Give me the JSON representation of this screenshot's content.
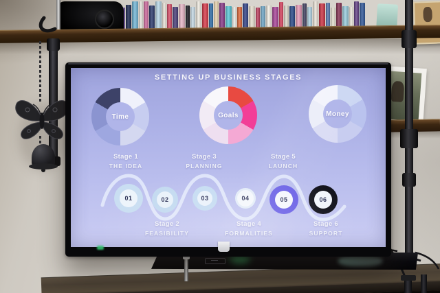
{
  "screen": {
    "title": "SETTING UP BUSINESS STAGES",
    "donuts": [
      {
        "label": "Time",
        "segments": [
          "#eff1fb",
          "#c7cdf0",
          "#d4d8f0",
          "#9ea7e0",
          "#8b94d0",
          "#3d4268"
        ]
      },
      {
        "label": "Goals",
        "segments": [
          "#e84a41",
          "#f23e97",
          "#f4a9d4",
          "#eedff0",
          "#f2ebf5",
          "#f8f7fb"
        ]
      },
      {
        "label": "Money",
        "segments": [
          "#ccd7f3",
          "#bac3ee",
          "#c8cdf0",
          "#dadcf4",
          "#ebedf9",
          "#f3f4fc"
        ]
      }
    ],
    "stages": [
      {
        "stage": "Stage 1",
        "name": "THE IDEA",
        "num": "01",
        "ring_color": "#c9def2",
        "inner_color": "#edf4fb"
      },
      {
        "stage": "Stage 2",
        "name": "FEASIBILITY",
        "num": "02",
        "ring_color": "#c3daf0",
        "inner_color": "#e9f1fa"
      },
      {
        "stage": "Stage 3",
        "name": "PLANNING",
        "num": "03",
        "ring_color": "#c6dcf2",
        "inner_color": "#eaf2fb"
      },
      {
        "stage": "Stage 4",
        "name": "FORMALITIES",
        "num": "04",
        "ring_color": "#e3ecf8",
        "inner_color": "#f4f7fc"
      },
      {
        "stage": "Stage 5",
        "name": "LAUNCH",
        "num": "05",
        "ring_color": "#6b61e6",
        "inner_color": "#f5f7fd"
      },
      {
        "stage": "Stage 6",
        "name": "SUPPORT",
        "num": "06",
        "ring_color": "#14141d",
        "inner_color": "#f2f5fb"
      }
    ],
    "bg_top": "#9fa4dd",
    "bg_bottom": "#cbcdf3",
    "number_color": "#2c3156"
  },
  "chart_data": [
    {
      "type": "pie",
      "title": "Time",
      "values": [
        16.6,
        16.7,
        16.7,
        16.7,
        16.7,
        16.6
      ],
      "colors": [
        "#eff1fb",
        "#c7cdf0",
        "#d4d8f0",
        "#9ea7e0",
        "#8b94d0",
        "#3d4268"
      ],
      "donut": true,
      "center_label": "Time",
      "legend": "none"
    },
    {
      "type": "pie",
      "title": "Goals",
      "values": [
        16.6,
        16.7,
        16.7,
        16.7,
        16.7,
        16.6
      ],
      "colors": [
        "#e84a41",
        "#f23e97",
        "#f4a9d4",
        "#eedff0",
        "#f2ebf5",
        "#f8f7fb"
      ],
      "donut": true,
      "center_label": "Goals",
      "legend": "none"
    },
    {
      "type": "pie",
      "title": "Money",
      "values": [
        16.6,
        16.7,
        16.7,
        16.7,
        16.7,
        16.6
      ],
      "colors": [
        "#ccd7f3",
        "#bac3ee",
        "#c8cdf0",
        "#dadcf4",
        "#ebedf9",
        "#f3f4fc"
      ],
      "donut": true,
      "center_label": "Money",
      "legend": "none"
    }
  ],
  "shelf": {
    "dvd_spines": [
      "#2b2b33",
      "#7a5aa8",
      "#1e2a52",
      "#74b8d8",
      "#e8e6de",
      "#cf6a9e",
      "#2b3b6e",
      "#b8d8e8",
      "#efe9dd",
      "#d94f6a",
      "#4a3f7a",
      "#e8b8c8",
      "#1a1a22",
      "#c8dce8",
      "#f0ece2",
      "#d83a4a",
      "#2e6ea8",
      "#e8d5b0",
      "#8a3a8a",
      "#5ac8d8",
      "#efefe8",
      "#e06a3a",
      "#334488",
      "#e8e0d0",
      "#c04060",
      "#70a8c8",
      "#f2eee4",
      "#aa4499",
      "#d8425f",
      "#ddd8ca",
      "#2a4a8a",
      "#e89ab8",
      "#404060",
      "#b0d4e4",
      "#ece6da",
      "#cc3344",
      "#5878b0",
      "#e8e2d2",
      "#883355",
      "#99ccdd",
      "#f0ebe0",
      "#664488",
      "#30589a"
    ]
  }
}
